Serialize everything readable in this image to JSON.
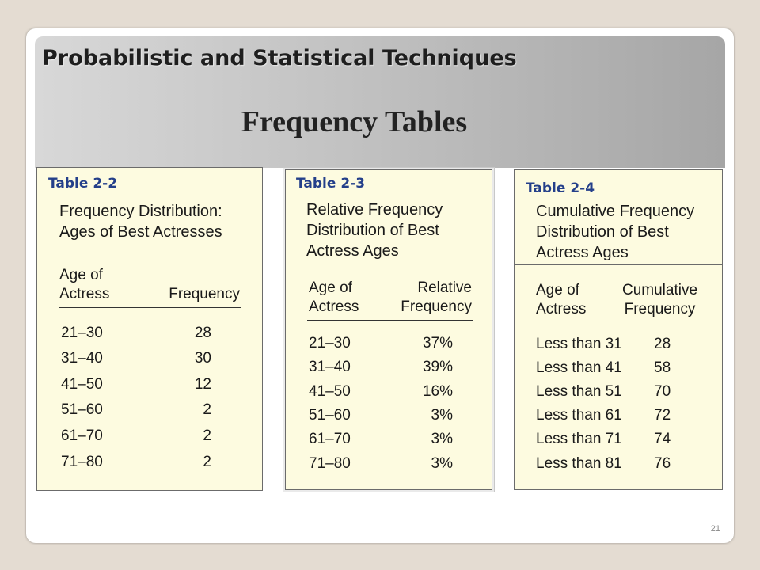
{
  "slide": {
    "header_title": "Probabilistic and Statistical Techniques",
    "title": "Frequency Tables",
    "page_number": "21"
  },
  "tables": [
    {
      "label": "Table 2-2",
      "caption": "Frequency Distribution:\nAges of Best Actresses",
      "col1_header": "Age of\nActress",
      "col2_header": "Frequency",
      "rows": [
        {
          "c1": "21–30",
          "c2": "28"
        },
        {
          "c1": "31–40",
          "c2": "30"
        },
        {
          "c1": "41–50",
          "c2": "12"
        },
        {
          "c1": "51–60",
          "c2": "2"
        },
        {
          "c1": "61–70",
          "c2": "2"
        },
        {
          "c1": "71–80",
          "c2": "2"
        }
      ]
    },
    {
      "label": "Table 2-3",
      "caption": "Relative Frequency\nDistribution of Best\nActress Ages",
      "col1_header": "Age of\nActress",
      "col2_header": "Relative\nFrequency",
      "rows": [
        {
          "c1": "21–30",
          "c2": "37%"
        },
        {
          "c1": "31–40",
          "c2": "39%"
        },
        {
          "c1": "41–50",
          "c2": "16%"
        },
        {
          "c1": "51–60",
          "c2": "3%"
        },
        {
          "c1": "61–70",
          "c2": "3%"
        },
        {
          "c1": "71–80",
          "c2": "3%"
        }
      ]
    },
    {
      "label": "Table 2-4",
      "caption": "Cumulative Frequency\nDistribution of Best\nActress Ages",
      "col1_header": "Age of\nActress",
      "col2_header": "Cumulative\nFrequency",
      "rows": [
        {
          "c1": "Less than 31",
          "c2": "28"
        },
        {
          "c1": "Less than 41",
          "c2": "58"
        },
        {
          "c1": "Less than 51",
          "c2": "70"
        },
        {
          "c1": "Less than 61",
          "c2": "72"
        },
        {
          "c1": "Less than 71",
          "c2": "74"
        },
        {
          "c1": "Less than 81",
          "c2": "76"
        }
      ]
    }
  ]
}
